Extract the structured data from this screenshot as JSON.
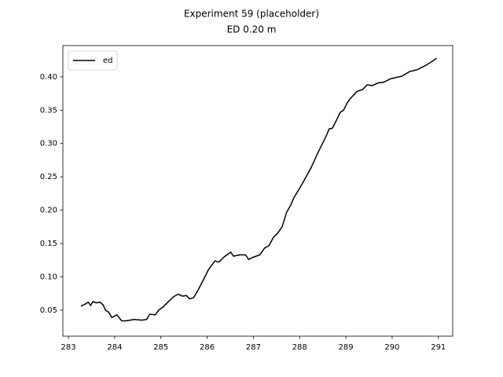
{
  "chart_data": {
    "type": "line",
    "title": "Experiment 59 (placeholder)",
    "subtitle": "ED 0.20 m",
    "x": [
      283.27,
      283.36,
      283.43,
      283.48,
      283.53,
      283.6,
      283.68,
      283.75,
      283.8,
      283.87,
      283.94,
      284.05,
      284.15,
      284.25,
      284.42,
      284.59,
      284.69,
      284.76,
      284.88,
      284.95,
      285.05,
      285.15,
      285.27,
      285.37,
      285.47,
      285.55,
      285.62,
      285.71,
      285.81,
      285.93,
      286.03,
      286.17,
      286.25,
      286.37,
      286.51,
      286.57,
      286.71,
      286.83,
      286.9,
      286.98,
      287.14,
      287.24,
      287.34,
      287.43,
      287.53,
      287.62,
      287.72,
      287.81,
      287.87,
      288.06,
      288.25,
      288.4,
      288.56,
      288.64,
      288.71,
      288.81,
      288.88,
      288.95,
      289.02,
      289.09,
      289.17,
      289.24,
      289.36,
      289.46,
      289.57,
      289.7,
      289.82,
      289.96,
      290.08,
      290.21,
      290.38,
      290.55,
      290.72,
      290.86,
      290.96
    ],
    "series": [
      {
        "name": "ed",
        "color": "#000000",
        "values": [
          0.056,
          0.059,
          0.062,
          0.057,
          0.063,
          0.061,
          0.062,
          0.058,
          0.05,
          0.047,
          0.039,
          0.043,
          0.034,
          0.034,
          0.036,
          0.035,
          0.036,
          0.044,
          0.043,
          0.05,
          0.055,
          0.062,
          0.07,
          0.074,
          0.071,
          0.072,
          0.067,
          0.069,
          0.081,
          0.097,
          0.111,
          0.124,
          0.122,
          0.13,
          0.137,
          0.131,
          0.133,
          0.133,
          0.126,
          0.129,
          0.133,
          0.143,
          0.147,
          0.159,
          0.166,
          0.175,
          0.197,
          0.208,
          0.218,
          0.24,
          0.264,
          0.287,
          0.309,
          0.322,
          0.323,
          0.337,
          0.347,
          0.35,
          0.36,
          0.367,
          0.373,
          0.378,
          0.381,
          0.388,
          0.387,
          0.391,
          0.392,
          0.397,
          0.399,
          0.401,
          0.408,
          0.411,
          0.417,
          0.423,
          0.428
        ]
      }
    ],
    "xlim": [
      282.88,
      291.31
    ],
    "xticks": [
      283,
      284,
      285,
      286,
      287,
      288,
      289,
      290,
      291
    ],
    "ylim": [
      0.011,
      0.447
    ],
    "yticks": [
      0.05,
      {
        "value": 0.1,
        "label": "0.10"
      },
      0.15,
      {
        "value": 0.2,
        "label": "0.20"
      },
      0.25,
      {
        "value": 0.3,
        "label": "0.30"
      },
      0.35,
      {
        "value": 0.4,
        "label": "0.40"
      }
    ],
    "legend": "upper left"
  }
}
